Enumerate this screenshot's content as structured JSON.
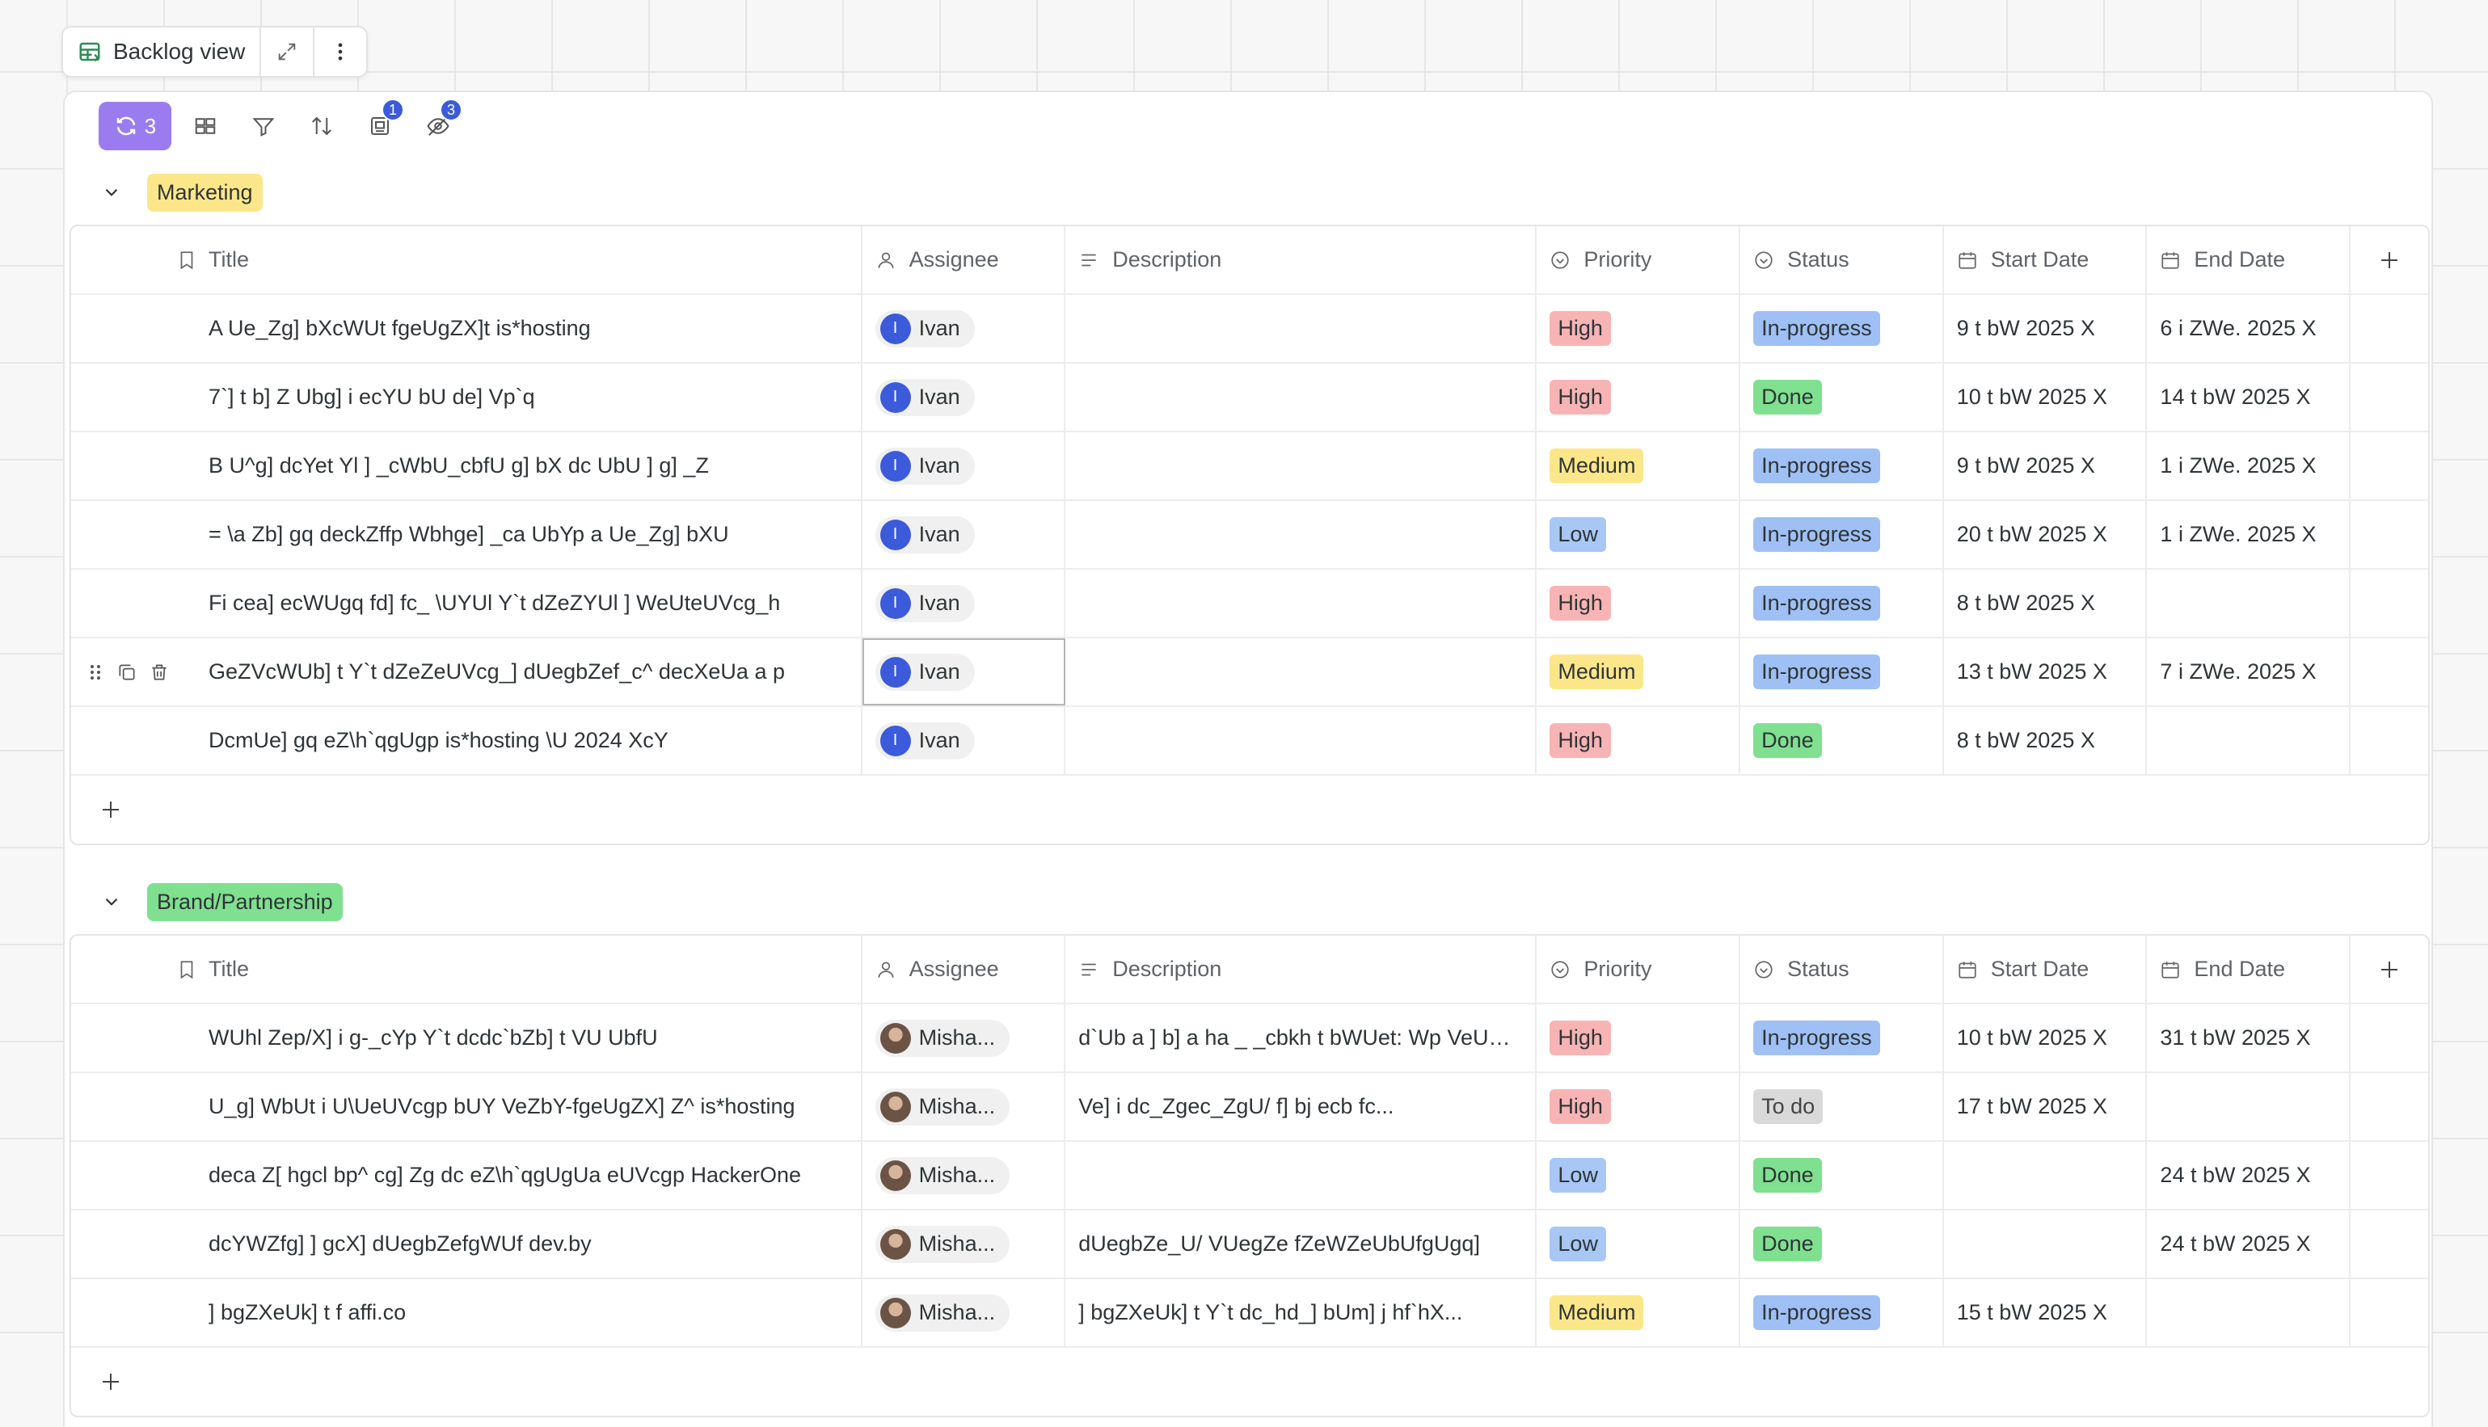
{
  "view": {
    "name": "Backlog view"
  },
  "toolbar": {
    "sync_count": "3",
    "badge_group": "1",
    "badge_hidden": "3"
  },
  "columns": {
    "title": "Title",
    "assignee": "Assignee",
    "description": "Description",
    "priority": "Priority",
    "status": "Status",
    "start_date": "Start Date",
    "end_date": "End Date"
  },
  "groups": [
    {
      "name": "Marketing",
      "color": "#fbe78a",
      "rows": [
        {
          "title": "A Ue_Zg] bXcWUt fgeUgZX]t is*hosting",
          "assignee": "Ivan",
          "avatar": "I",
          "description": "",
          "priority": "High",
          "status": "In-progress",
          "start": "9 t bW 2025 X",
          "end": "6 i ZWe. 2025 X"
        },
        {
          "title": "7`] t b] Z Ubg] i ecYU bU de] Vp`q",
          "assignee": "Ivan",
          "avatar": "I",
          "description": "",
          "priority": "High",
          "status": "Done",
          "start": "10 t bW 2025 X",
          "end": "14 t bW 2025 X"
        },
        {
          "title": "B U^g] dcYet Yl ] _cWbU_cbfU g] bX dc UbU ] g] _Z",
          "assignee": "Ivan",
          "avatar": "I",
          "description": "",
          "priority": "Medium",
          "status": "In-progress",
          "start": "9 t bW 2025 X",
          "end": "1 i ZWe. 2025 X"
        },
        {
          "title": "= \\a Zb] gq deckZffp Wbhge] _ca UbYp a Ue_Zg] bXU",
          "assignee": "Ivan",
          "avatar": "I",
          "description": "",
          "priority": "Low",
          "status": "In-progress",
          "start": "20 t bW 2025 X",
          "end": "1 i ZWe. 2025 X"
        },
        {
          "title": "Fi cea] ecWUgq fd] fc_ \\UYUl Y`t dZeZYUl ] WeUteUVcg_h",
          "assignee": "Ivan",
          "avatar": "I",
          "description": "",
          "priority": "High",
          "status": "In-progress",
          "start": "8 t bW 2025 X",
          "end": ""
        },
        {
          "title": "GeZVcWUb] t Y`t dZeZeUVcg_] dUegbZef_c^ decXeUa a p",
          "assignee": "Ivan",
          "avatar": "I",
          "description": "",
          "priority": "Medium",
          "status": "In-progress",
          "start": "13 t bW 2025 X",
          "end": "7 i ZWe. 2025 X",
          "selected": true
        },
        {
          "title": "DcmUe] gq eZ\\h`qgUgp is*hosting \\U 2024 XcY",
          "assignee": "Ivan",
          "avatar": "I",
          "description": "",
          "priority": "High",
          "status": "Done",
          "start": "8 t bW 2025 X",
          "end": ""
        }
      ]
    },
    {
      "name": "Brand/Partnership",
      "color": "#7fe08f",
      "rows": [
        {
          "title": "WUhl Zep/X] i g-_cYp Y`t dcdc`bZb] t VU UbfU",
          "assignee": "Misha...",
          "avatar": "photo",
          "description": "d`Ub a ] b] a ha _ _cbkh t bWUet: Wp VeUgq...",
          "priority": "High",
          "status": "In-progress",
          "start": "10 t bW 2025 X",
          "end": "31 t bW 2025 X"
        },
        {
          "title": "U_g] WbUt i U\\UeUVcgp bUY VeZbY-fgeUgZX] Z^ is*hosting",
          "assignee": "Misha...",
          "avatar": "photo",
          "description": "Ve] i dc_Zgec_ZgU/ f] bj ecb fc...",
          "priority": "High",
          "status": "To do",
          "start": "17 t bW 2025 X",
          "end": ""
        },
        {
          "title": "deca Z[ hgcl bp^ cg] Zg dc eZ\\h`qgUgUa eUVcgp HackerOne",
          "assignee": "Misha...",
          "avatar": "photo",
          "description": "",
          "priority": "Low",
          "status": "Done",
          "start": "",
          "end": "24 t bW 2025 X"
        },
        {
          "title": "dcYWZfg] ] gcX] dUegbZefgWUf dev.by",
          "assignee": "Misha...",
          "avatar": "photo",
          "description": "dUegbZe_U/ VUegZe fZeWZeUbUfgUgq]",
          "priority": "Low",
          "status": "Done",
          "start": "",
          "end": "24 t bW 2025 X"
        },
        {
          "title": "] bgZXeUk] t f affi.co",
          "assignee": "Misha...",
          "avatar": "photo",
          "description": "] bgZXeUk] t Y`t dc_hd_] bUm] j hf`hX...",
          "priority": "Medium",
          "status": "In-progress",
          "start": "15 t bW 2025 X",
          "end": ""
        }
      ]
    }
  ]
}
